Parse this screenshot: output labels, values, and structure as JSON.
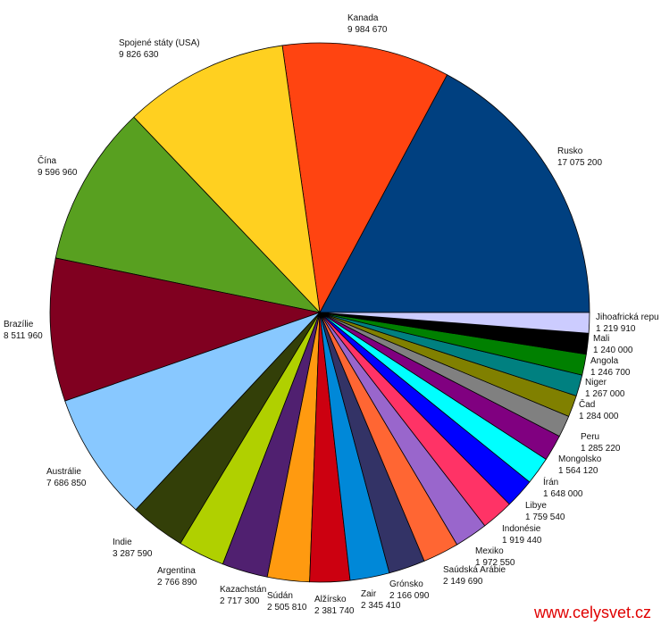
{
  "chart_data": {
    "type": "pie",
    "start": "3 o'clock, counterclockwise",
    "legend": "none",
    "slices": [
      {
        "label": "Rusko",
        "value": 17075200,
        "value_text": "17 075 200",
        "color": "#004080"
      },
      {
        "label": "Kanada",
        "value": 9984670,
        "value_text": "9 984 670",
        "color": "#ff4411"
      },
      {
        "label": "Spojené státy (USA)",
        "value": 9826630,
        "value_text": "9 826 630",
        "color": "#ffd020"
      },
      {
        "label": "Čína",
        "value": 9596960,
        "value_text": "9 596 960",
        "color": "#58a020"
      },
      {
        "label": "Brazílie",
        "value": 8511960,
        "value_text": "8 511 960",
        "color": "#800020"
      },
      {
        "label": "Austrálie",
        "value": 7686850,
        "value_text": "7 686 850",
        "color": "#88c8ff"
      },
      {
        "label": "Indie",
        "value": 3287590,
        "value_text": "3 287 590",
        "color": "#333f08"
      },
      {
        "label": "Argentina",
        "value": 2766890,
        "value_text": "2 766 890",
        "color": "#b0d000"
      },
      {
        "label": "Kazachstán",
        "value": 2717300,
        "value_text": "2 717 300",
        "color": "#502070"
      },
      {
        "label": "Súdán",
        "value": 2505810,
        "value_text": "2 505 810",
        "color": "#ff9a10"
      },
      {
        "label": "Alžírsko",
        "value": 2381740,
        "value_text": "2 381 740",
        "color": "#cc0010"
      },
      {
        "label": "Zair",
        "value": 2345410,
        "value_text": "2 345 410",
        "color": "#0088d8"
      },
      {
        "label": "Grónsko",
        "value": 2166090,
        "value_text": "2 166 090",
        "color": "#333366"
      },
      {
        "label": "Saúdská Arábie",
        "value": 2149690,
        "value_text": "2 149 690",
        "color": "#ff6633"
      },
      {
        "label": "Mexiko",
        "value": 1972550,
        "value_text": "1 972 550",
        "color": "#9966cc"
      },
      {
        "label": "Indonésie",
        "value": 1919440,
        "value_text": "1 919 440",
        "color": "#ff3366"
      },
      {
        "label": "Libye",
        "value": 1759540,
        "value_text": "1 759 540",
        "color": "#0000ff"
      },
      {
        "label": "Írán",
        "value": 1648000,
        "value_text": "1 648 000",
        "color": "#00ffff"
      },
      {
        "label": "Mongolsko",
        "value": 1564120,
        "value_text": "1 564 120",
        "color": "#800080"
      },
      {
        "label": "Peru",
        "value": 1285220,
        "value_text": "1 285 220",
        "color": "#808080"
      },
      {
        "label": "Čad",
        "value": 1284000,
        "value_text": "1 284 000",
        "color": "#808000"
      },
      {
        "label": "Niger",
        "value": 1267000,
        "value_text": "1 267 000",
        "color": "#008080"
      },
      {
        "label": "Angola",
        "value": 1246700,
        "value_text": "1 246 700",
        "color": "#008000"
      },
      {
        "label": "Mali",
        "value": 1240000,
        "value_text": "1 240 000",
        "color": "#000000"
      },
      {
        "label": "Jihoafrická repu",
        "value": 1219910,
        "value_text": "1 219 910",
        "color": "#ccccff"
      }
    ]
  },
  "watermark": "www.celysvet.cz"
}
